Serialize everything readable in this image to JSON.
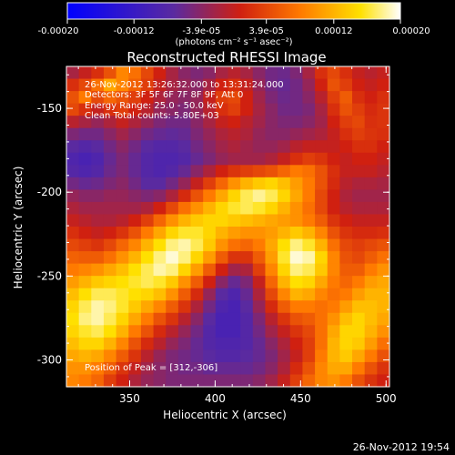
{
  "footer_timestamp": "26-Nov-2012 19:54",
  "chart_data": {
    "type": "heatmap",
    "title": "Reconstructed RHESSI Image",
    "xlabel": "Heliocentric X (arcsec)",
    "ylabel": "Heliocentric Y (arcsec)",
    "xlim": [
      313,
      502
    ],
    "ylim": [
      -316,
      -125
    ],
    "x_ticks": [
      350,
      400,
      450,
      500
    ],
    "y_ticks": [
      -150,
      -200,
      -250,
      -300
    ],
    "colorbar": {
      "unit_label": "(photons cm⁻² s⁻¹ asec⁻²)",
      "range": [
        -0.0002,
        0.0002
      ],
      "tick_values": [
        -0.0002,
        -0.00012,
        -3.9e-05,
        3.9e-05,
        0.00012,
        0.0002
      ],
      "tick_labels": [
        "-0.00020",
        "-0.00012",
        "-3.9e-05",
        "3.9e-05",
        "0.00012",
        "0.00020"
      ],
      "colormap": [
        "#0000ff",
        "#5a2aa0",
        "#d02010",
        "#ff7a00",
        "#ffe000",
        "#ffffff"
      ]
    },
    "annotations": [
      "26-Nov-2012 13:26:32.000 to 13:31:24.000",
      "Detectors: 3F 5F 6F 7F 8F 9F, Att 0",
      "Energy Range: 25.0 - 50.0 keV",
      "Clean     Total counts: 5.80E+03"
    ],
    "peak_label": "Position of Peak = [312,-306]",
    "image_grid": {
      "cols": 26,
      "rows": 26,
      "values_normalized": [
        [
          0.45,
          0.5,
          0.55,
          0.62,
          0.72,
          0.68,
          0.6,
          0.52,
          0.45,
          0.4,
          0.38,
          0.4,
          0.45,
          0.48,
          0.45,
          0.4,
          0.36,
          0.35,
          0.38,
          0.45,
          0.55,
          0.6,
          0.55,
          0.5,
          0.48,
          0.5
        ],
        [
          0.55,
          0.6,
          0.68,
          0.78,
          0.72,
          0.65,
          0.58,
          0.5,
          0.45,
          0.42,
          0.4,
          0.45,
          0.52,
          0.55,
          0.5,
          0.42,
          0.36,
          0.34,
          0.36,
          0.42,
          0.52,
          0.62,
          0.58,
          0.52,
          0.5,
          0.52
        ],
        [
          0.62,
          0.7,
          0.6,
          0.66,
          0.62,
          0.58,
          0.52,
          0.46,
          0.42,
          0.4,
          0.42,
          0.5,
          0.58,
          0.6,
          0.52,
          0.44,
          0.38,
          0.35,
          0.36,
          0.4,
          0.48,
          0.58,
          0.64,
          0.55,
          0.52,
          0.55
        ],
        [
          0.6,
          0.55,
          0.5,
          0.55,
          0.58,
          0.52,
          0.48,
          0.42,
          0.4,
          0.38,
          0.42,
          0.48,
          0.55,
          0.58,
          0.52,
          0.45,
          0.4,
          0.36,
          0.36,
          0.38,
          0.45,
          0.55,
          0.62,
          0.58,
          0.54,
          0.56
        ],
        [
          0.48,
          0.45,
          0.42,
          0.46,
          0.5,
          0.46,
          0.42,
          0.38,
          0.36,
          0.36,
          0.4,
          0.45,
          0.5,
          0.52,
          0.48,
          0.44,
          0.4,
          0.38,
          0.38,
          0.4,
          0.44,
          0.52,
          0.58,
          0.6,
          0.55,
          0.56
        ],
        [
          0.38,
          0.36,
          0.36,
          0.4,
          0.44,
          0.4,
          0.36,
          0.34,
          0.33,
          0.34,
          0.38,
          0.42,
          0.46,
          0.48,
          0.46,
          0.42,
          0.4,
          0.4,
          0.42,
          0.44,
          0.46,
          0.5,
          0.55,
          0.58,
          0.56,
          0.55
        ],
        [
          0.32,
          0.3,
          0.32,
          0.36,
          0.4,
          0.36,
          0.32,
          0.3,
          0.3,
          0.32,
          0.36,
          0.4,
          0.44,
          0.46,
          0.44,
          0.42,
          0.42,
          0.44,
          0.48,
          0.5,
          0.5,
          0.5,
          0.52,
          0.55,
          0.55,
          0.52
        ],
        [
          0.28,
          0.26,
          0.28,
          0.34,
          0.38,
          0.34,
          0.3,
          0.28,
          0.28,
          0.3,
          0.34,
          0.38,
          0.42,
          0.44,
          0.44,
          0.44,
          0.46,
          0.5,
          0.55,
          0.58,
          0.56,
          0.52,
          0.5,
          0.52,
          0.52,
          0.5
        ],
        [
          0.3,
          0.28,
          0.3,
          0.35,
          0.38,
          0.34,
          0.3,
          0.28,
          0.3,
          0.34,
          0.4,
          0.46,
          0.52,
          0.56,
          0.58,
          0.6,
          0.62,
          0.66,
          0.7,
          0.68,
          0.62,
          0.55,
          0.5,
          0.5,
          0.5,
          0.48
        ],
        [
          0.36,
          0.34,
          0.35,
          0.38,
          0.4,
          0.36,
          0.32,
          0.32,
          0.36,
          0.42,
          0.5,
          0.58,
          0.66,
          0.74,
          0.8,
          0.84,
          0.86,
          0.82,
          0.76,
          0.7,
          0.62,
          0.54,
          0.48,
          0.46,
          0.46,
          0.45
        ],
        [
          0.42,
          0.4,
          0.4,
          0.42,
          0.42,
          0.4,
          0.38,
          0.4,
          0.46,
          0.54,
          0.62,
          0.7,
          0.78,
          0.86,
          0.92,
          0.95,
          0.92,
          0.86,
          0.78,
          0.7,
          0.6,
          0.52,
          0.46,
          0.44,
          0.44,
          0.44
        ],
        [
          0.46,
          0.44,
          0.44,
          0.44,
          0.44,
          0.44,
          0.46,
          0.52,
          0.6,
          0.68,
          0.74,
          0.8,
          0.86,
          0.9,
          0.92,
          0.9,
          0.86,
          0.8,
          0.74,
          0.68,
          0.6,
          0.52,
          0.48,
          0.46,
          0.46,
          0.46
        ],
        [
          0.5,
          0.48,
          0.46,
          0.46,
          0.48,
          0.52,
          0.58,
          0.66,
          0.74,
          0.8,
          0.84,
          0.86,
          0.86,
          0.84,
          0.82,
          0.8,
          0.78,
          0.76,
          0.74,
          0.7,
          0.64,
          0.56,
          0.52,
          0.5,
          0.5,
          0.5
        ],
        [
          0.55,
          0.52,
          0.5,
          0.52,
          0.56,
          0.62,
          0.7,
          0.78,
          0.86,
          0.9,
          0.9,
          0.86,
          0.8,
          0.76,
          0.74,
          0.74,
          0.76,
          0.8,
          0.84,
          0.8,
          0.72,
          0.62,
          0.56,
          0.54,
          0.54,
          0.55
        ],
        [
          0.6,
          0.58,
          0.56,
          0.6,
          0.66,
          0.72,
          0.8,
          0.88,
          0.94,
          0.96,
          0.92,
          0.84,
          0.74,
          0.68,
          0.66,
          0.7,
          0.78,
          0.88,
          0.94,
          0.9,
          0.8,
          0.68,
          0.6,
          0.58,
          0.6,
          0.62
        ],
        [
          0.65,
          0.64,
          0.64,
          0.68,
          0.74,
          0.8,
          0.88,
          0.94,
          0.98,
          0.94,
          0.86,
          0.76,
          0.64,
          0.56,
          0.56,
          0.64,
          0.76,
          0.9,
          0.98,
          0.96,
          0.86,
          0.72,
          0.62,
          0.6,
          0.64,
          0.68
        ],
        [
          0.7,
          0.72,
          0.74,
          0.78,
          0.82,
          0.88,
          0.92,
          0.96,
          0.94,
          0.86,
          0.76,
          0.64,
          0.52,
          0.44,
          0.46,
          0.58,
          0.72,
          0.86,
          0.94,
          0.92,
          0.84,
          0.72,
          0.64,
          0.64,
          0.7,
          0.74
        ],
        [
          0.76,
          0.8,
          0.84,
          0.86,
          0.88,
          0.9,
          0.92,
          0.9,
          0.84,
          0.74,
          0.64,
          0.52,
          0.4,
          0.34,
          0.38,
          0.5,
          0.66,
          0.8,
          0.88,
          0.86,
          0.78,
          0.7,
          0.66,
          0.7,
          0.76,
          0.78
        ],
        [
          0.82,
          0.88,
          0.92,
          0.92,
          0.9,
          0.88,
          0.86,
          0.82,
          0.74,
          0.64,
          0.54,
          0.42,
          0.32,
          0.28,
          0.34,
          0.46,
          0.6,
          0.72,
          0.8,
          0.78,
          0.72,
          0.68,
          0.7,
          0.76,
          0.8,
          0.8
        ],
        [
          0.86,
          0.92,
          0.96,
          0.94,
          0.9,
          0.84,
          0.78,
          0.72,
          0.64,
          0.56,
          0.46,
          0.36,
          0.28,
          0.26,
          0.32,
          0.42,
          0.54,
          0.64,
          0.7,
          0.7,
          0.68,
          0.7,
          0.76,
          0.82,
          0.82,
          0.8
        ],
        [
          0.88,
          0.94,
          0.96,
          0.92,
          0.86,
          0.78,
          0.7,
          0.62,
          0.56,
          0.48,
          0.4,
          0.32,
          0.26,
          0.26,
          0.3,
          0.38,
          0.48,
          0.56,
          0.62,
          0.64,
          0.68,
          0.74,
          0.82,
          0.86,
          0.82,
          0.78
        ],
        [
          0.86,
          0.9,
          0.92,
          0.88,
          0.8,
          0.7,
          0.62,
          0.54,
          0.48,
          0.42,
          0.36,
          0.3,
          0.26,
          0.26,
          0.3,
          0.36,
          0.44,
          0.5,
          0.56,
          0.6,
          0.68,
          0.78,
          0.86,
          0.86,
          0.8,
          0.74
        ],
        [
          0.82,
          0.86,
          0.86,
          0.8,
          0.72,
          0.62,
          0.54,
          0.48,
          0.42,
          0.38,
          0.34,
          0.3,
          0.28,
          0.28,
          0.3,
          0.34,
          0.4,
          0.46,
          0.52,
          0.58,
          0.68,
          0.8,
          0.86,
          0.84,
          0.76,
          0.68
        ],
        [
          0.78,
          0.8,
          0.78,
          0.72,
          0.64,
          0.56,
          0.48,
          0.42,
          0.38,
          0.36,
          0.34,
          0.32,
          0.3,
          0.3,
          0.32,
          0.34,
          0.38,
          0.44,
          0.5,
          0.58,
          0.7,
          0.8,
          0.84,
          0.78,
          0.7,
          0.62
        ],
        [
          0.74,
          0.74,
          0.7,
          0.64,
          0.56,
          0.5,
          0.44,
          0.4,
          0.38,
          0.36,
          0.36,
          0.34,
          0.34,
          0.34,
          0.34,
          0.36,
          0.4,
          0.46,
          0.54,
          0.62,
          0.72,
          0.78,
          0.78,
          0.7,
          0.62,
          0.56
        ],
        [
          0.72,
          0.7,
          0.66,
          0.58,
          0.52,
          0.46,
          0.42,
          0.4,
          0.38,
          0.38,
          0.38,
          0.38,
          0.38,
          0.38,
          0.38,
          0.4,
          0.44,
          0.5,
          0.58,
          0.66,
          0.72,
          0.74,
          0.7,
          0.62,
          0.56,
          0.52
        ]
      ]
    }
  }
}
